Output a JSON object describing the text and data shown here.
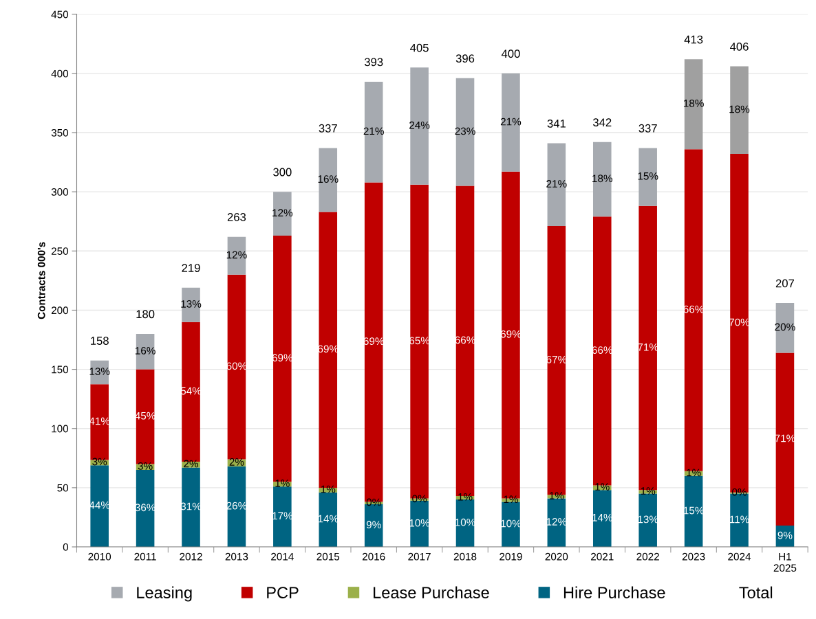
{
  "chart_data": {
    "type": "bar",
    "stacked": true,
    "ylabel": "Contracts 000's",
    "categories": [
      "2010",
      "2011",
      "2012",
      "2013",
      "2014",
      "2015",
      "2016",
      "2017",
      "2018",
      "2019",
      "2020",
      "2021",
      "2022",
      "2023",
      "2024",
      "H1\n2025"
    ],
    "ylim": [
      0,
      450
    ],
    "yticks": [
      0,
      50,
      100,
      150,
      200,
      250,
      300,
      350,
      400,
      450
    ],
    "grid": "y",
    "legend": "bottom",
    "series": [
      {
        "name": "Hire Purchase",
        "color": "#006482",
        "values": [
          69,
          65,
          67,
          68,
          51,
          46,
          36,
          39,
          40,
          38,
          41,
          48,
          45,
          60,
          45,
          18
        ]
      },
      {
        "name": "Lease Purchase",
        "color": "#9bb04a",
        "values": [
          4.5,
          5,
          5,
          6,
          4,
          4,
          2,
          2,
          3,
          3,
          3,
          4,
          3,
          4,
          1,
          0
        ]
      },
      {
        "name": "PCP",
        "color": "#c00000",
        "values": [
          64,
          80,
          118,
          156,
          208,
          233,
          270,
          265,
          262,
          276,
          227,
          227,
          240,
          272,
          286,
          146
        ]
      },
      {
        "name": "Leasing",
        "color": "#a6aab0",
        "colors": [
          "#a6aab0",
          "#a6aab0",
          "#a6aab0",
          "#a6aab0",
          "#a6aab0",
          "#a6aab0",
          "#a6aab0",
          "#a6aab0",
          "#a6aab0",
          "#a6aab0",
          "#a6aab0",
          "#a6aab0",
          "#a6aab0",
          "#a0a0a0",
          "#a0a0a0",
          "#a6aab0"
        ],
        "values": [
          20,
          30,
          29,
          32,
          37,
          54,
          85,
          99,
          91,
          83,
          70,
          63,
          49,
          76,
          74,
          42
        ]
      }
    ],
    "totals": [
      "158",
      "180",
      "219",
      "263",
      "300",
      "337",
      "393",
      "405",
      "396",
      "400",
      "341",
      "342",
      "337",
      "413",
      "406",
      "207"
    ],
    "annotations": [
      "Total",
      "44%",
      "3%",
      "41%",
      "13%",
      "36%",
      "3%",
      "45%",
      "16%",
      "31%",
      "2%",
      "54%",
      "13%",
      "26%",
      "2%",
      "60%",
      "12%",
      "17%",
      "1%",
      "69%",
      "12%",
      "14%",
      "1%",
      "69%",
      "16%",
      "9%",
      "0%",
      "69%",
      "21%",
      "10%",
      "0%",
      "65%",
      "24%",
      "10%",
      "1%",
      "66%",
      "23%",
      "10%",
      "1%",
      "69%",
      "21%",
      "12%",
      "1%",
      "67%",
      "21%",
      "14%",
      "1%",
      "66%",
      "18%",
      "13%",
      "1%",
      "71%",
      "15%",
      "15%",
      "1%",
      "66%",
      "18%",
      "11%",
      "0%",
      "70%",
      "18%",
      "9%",
      "71%",
      "20%"
    ]
  }
}
